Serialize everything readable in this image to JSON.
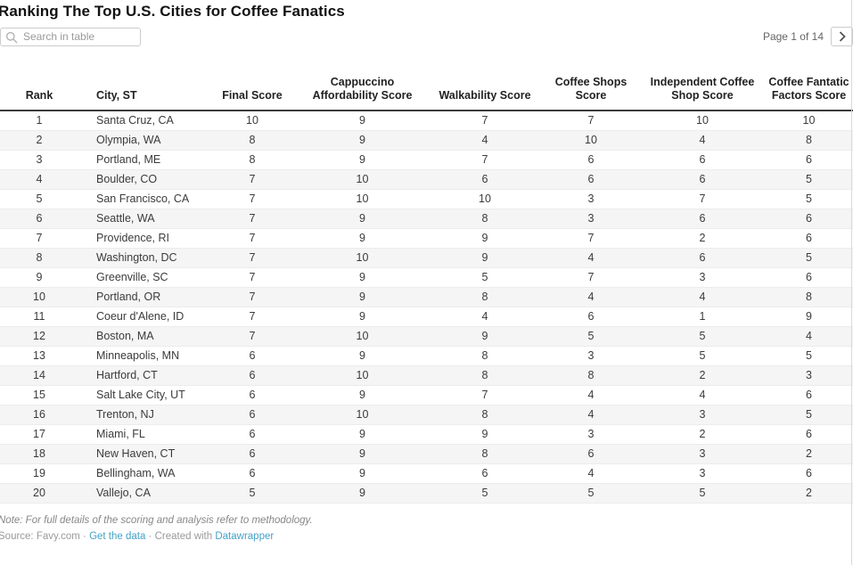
{
  "title": "Ranking The Top U.S. Cities for Coffee Fanatics",
  "search": {
    "placeholder": "Search in table"
  },
  "pagination": {
    "label": "Page 1 of 14"
  },
  "chart_data": {
    "type": "table",
    "title": "Ranking The Top U.S. Cities for Coffee Fanatics",
    "columns": [
      "Rank",
      "City, ST",
      "Final Score",
      "Cappuccino Affordability Score",
      "Walkability Score",
      "Coffee Shops Score",
      "Independent Coffee Shop Score",
      "Coffee Fantatic Factors Score"
    ],
    "rows": [
      [
        1,
        "Santa Cruz, CA",
        10,
        9,
        7,
        7,
        10,
        10
      ],
      [
        2,
        "Olympia, WA",
        8,
        9,
        4,
        10,
        4,
        8
      ],
      [
        3,
        "Portland, ME",
        8,
        9,
        7,
        6,
        6,
        6
      ],
      [
        4,
        "Boulder, CO",
        7,
        10,
        6,
        6,
        6,
        5
      ],
      [
        5,
        "San Francisco, CA",
        7,
        10,
        10,
        3,
        7,
        5
      ],
      [
        6,
        "Seattle, WA",
        7,
        9,
        8,
        3,
        6,
        6
      ],
      [
        7,
        "Providence, RI",
        7,
        9,
        9,
        7,
        2,
        6
      ],
      [
        8,
        "Washington, DC",
        7,
        10,
        9,
        4,
        6,
        5
      ],
      [
        9,
        "Greenville, SC",
        7,
        9,
        5,
        7,
        3,
        6
      ],
      [
        10,
        "Portland, OR",
        7,
        9,
        8,
        4,
        4,
        8
      ],
      [
        11,
        "Coeur d'Alene, ID",
        7,
        9,
        4,
        6,
        1,
        9
      ],
      [
        12,
        "Boston, MA",
        7,
        10,
        9,
        5,
        5,
        4
      ],
      [
        13,
        "Minneapolis, MN",
        6,
        9,
        8,
        3,
        5,
        5
      ],
      [
        14,
        "Hartford, CT",
        6,
        10,
        8,
        8,
        2,
        3
      ],
      [
        15,
        "Salt Lake City, UT",
        6,
        9,
        7,
        4,
        4,
        6
      ],
      [
        16,
        "Trenton, NJ",
        6,
        10,
        8,
        4,
        3,
        5
      ],
      [
        17,
        "Miami, FL",
        6,
        9,
        9,
        3,
        2,
        6
      ],
      [
        18,
        "New Haven, CT",
        6,
        9,
        8,
        6,
        3,
        2
      ],
      [
        19,
        "Bellingham, WA",
        6,
        9,
        6,
        4,
        3,
        6
      ],
      [
        20,
        "Vallejo, CA",
        5,
        9,
        5,
        5,
        5,
        2
      ]
    ]
  },
  "footer": {
    "note": "Note: For full details of the scoring and analysis refer to methodology.",
    "source_prefix": "Source: Favy.com",
    "separator": " · ",
    "get_data_link": "Get the data",
    "created_with": "Created with",
    "datawrapper_link": "Datawrapper"
  },
  "colors": {
    "link_blue": "#45a2c8",
    "row_stripe": "#f5f5f5",
    "header_rule": "#3b3b3b",
    "edge_line": "#d9d9d9"
  }
}
